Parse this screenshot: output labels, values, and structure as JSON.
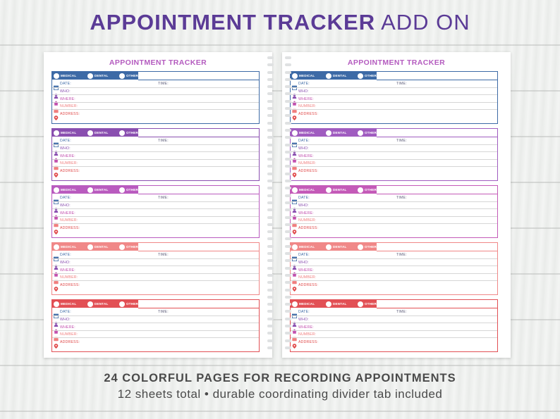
{
  "headline": {
    "bold": "APPOINTMENT TRACKER",
    "light": "ADD ON"
  },
  "page_title": "APPOINTMENT TRACKER",
  "options": [
    "MEDICAL",
    "DENTAL",
    "OTHER:"
  ],
  "fields": [
    {
      "label": "DATE:",
      "icon": "calendar-icon",
      "color": "#3d6aa6"
    },
    {
      "label": "WHO:",
      "icon": "person-icon",
      "color": "#8a4fb0"
    },
    {
      "label": "WHERE:",
      "icon": "house-icon",
      "color": "#c24fae"
    },
    {
      "label": "NUMBER:",
      "icon": "phone-icon",
      "color": "#f07e7e"
    },
    {
      "label": "ADDRESS:",
      "icon": "location-pin-icon",
      "color": "#e04a4a"
    }
  ],
  "time_label": "TIME:",
  "left_card_colors": [
    "#3d6aa6",
    "#8a4fb0",
    "#b95bbf",
    "#f08888",
    "#e25055"
  ],
  "right_card_colors": [
    "#3d6aa6",
    "#a05cc0",
    "#c45ab8",
    "#f08888",
    "#e25055"
  ],
  "footer": {
    "line1": "24 COLORFUL PAGES FOR RECORDING APPOINTMENTS",
    "line2": "12 sheets total   •  durable coordinating divider tab included"
  }
}
